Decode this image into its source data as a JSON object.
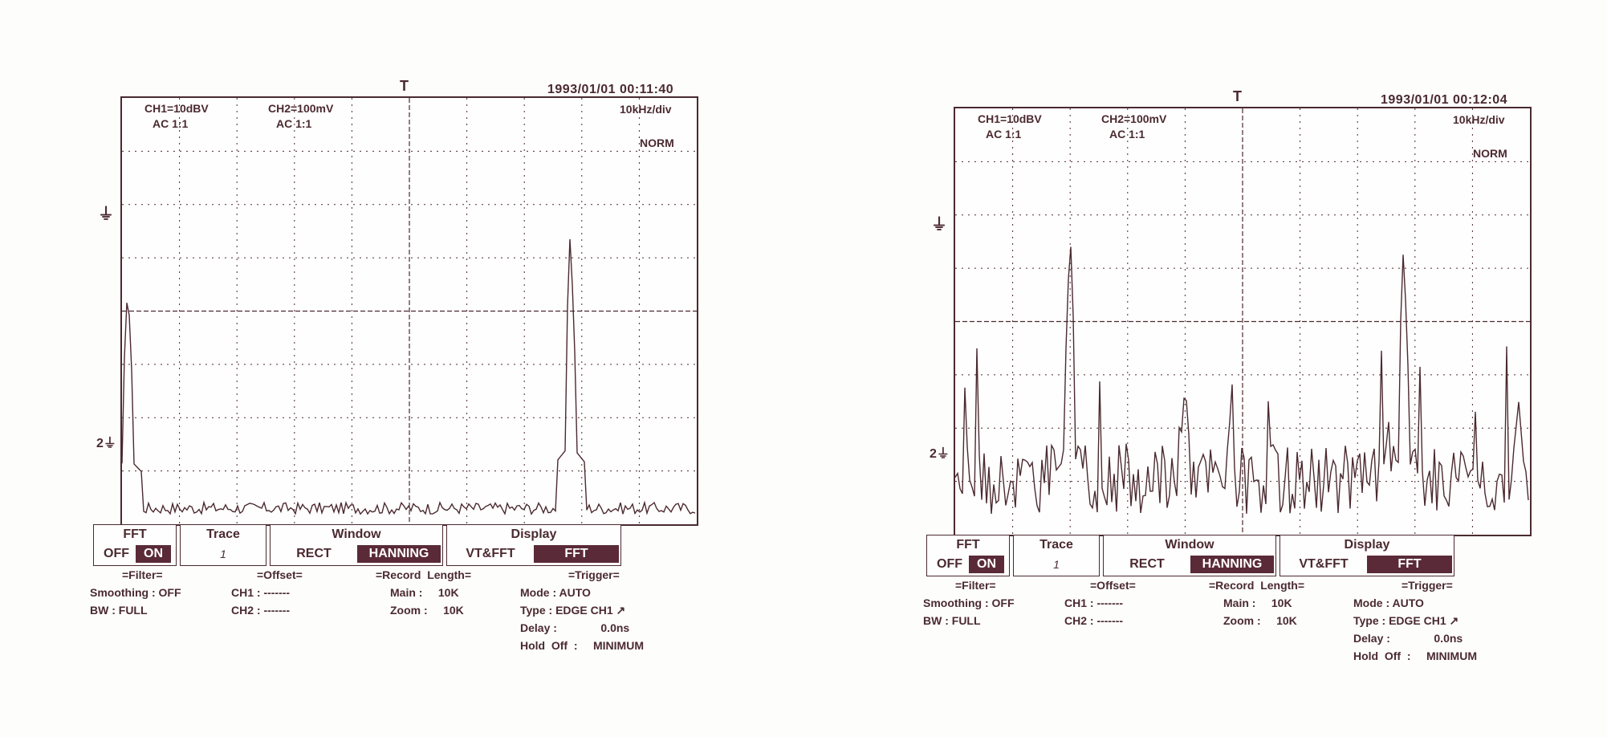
{
  "scopes": [
    {
      "datetime": "1993/01/01  00:11:40",
      "ch1": "CH1=10dBV",
      "ch1_coupling": "AC  1:1",
      "ch2": "CH2=100mV",
      "ch2_coupling": "AC  1:1",
      "scale": "10kHz/div",
      "mode_indicator": "NORM",
      "fft": {
        "label": "FFT",
        "off": "OFF",
        "on": "ON",
        "selected": "ON"
      },
      "trace": {
        "label": "Trace",
        "value": "1"
      },
      "window": {
        "label": "Window",
        "options": [
          "RECT",
          "HANNING"
        ],
        "selected": "HANNING"
      },
      "display": {
        "label": "Display",
        "options": [
          "VT&FFT",
          "FFT"
        ],
        "selected": "FFT"
      },
      "filter": {
        "header": "=Filter=",
        "smoothing": "Smoothing : OFF",
        "bw": "BW : FULL"
      },
      "offset": {
        "header": "=Offset=",
        "ch1": "CH1 : -------",
        "ch2": "CH2 : -------"
      },
      "record": {
        "header": "=Record  Length=",
        "main": "Main :     10K",
        "zoom": "Zoom :     10K"
      },
      "trigger": {
        "header": "=Trigger=",
        "mode": "Mode : AUTO",
        "type": "Type : EDGE CH1",
        "delay_label": "Delay :",
        "delay_value": "0.0ns",
        "holdoff_label": "Hold  Off  :",
        "holdoff_value": "MINIMUM"
      },
      "spectrum_peaks": [
        {
          "freq_div": 0.1,
          "level_div": 4.4
        },
        {
          "freq_div": 7.8,
          "level_div": 5.4
        }
      ],
      "noise_floor_div": 0.2
    },
    {
      "datetime": "1993/01/01  00:12:04",
      "ch1": "CH1=10dBV",
      "ch1_coupling": "AC  1:1",
      "ch2": "CH2=100mV",
      "ch2_coupling": "AC  1:1",
      "scale": "10kHz/div",
      "mode_indicator": "NORM",
      "fft": {
        "label": "FFT",
        "off": "OFF",
        "on": "ON",
        "selected": "ON"
      },
      "trace": {
        "label": "Trace",
        "value": "1"
      },
      "window": {
        "label": "Window",
        "options": [
          "RECT",
          "HANNING"
        ],
        "selected": "HANNING"
      },
      "display": {
        "label": "Display",
        "options": [
          "VT&FFT",
          "FFT"
        ],
        "selected": "FFT"
      },
      "filter": {
        "header": "=Filter=",
        "smoothing": "Smoothing : OFF",
        "bw": "BW : FULL"
      },
      "offset": {
        "header": "=Offset=",
        "ch1": "CH1 : -------",
        "ch2": "CH2 : -------"
      },
      "record": {
        "header": "=Record  Length=",
        "main": "Main :     10K",
        "zoom": "Zoom :     10K"
      },
      "trigger": {
        "header": "=Trigger=",
        "mode": "Mode : AUTO",
        "type": "Type : EDGE CH1",
        "delay_label": "Delay :",
        "delay_value": "0.0ns",
        "holdoff_label": "Hold  Off  :",
        "holdoff_value": "MINIMUM"
      },
      "spectrum_peaks": [
        {
          "freq_div": 2.0,
          "level_div": 5.6
        },
        {
          "freq_div": 4.0,
          "level_div": 2.7
        },
        {
          "freq_div": 7.8,
          "level_div": 5.3
        },
        {
          "freq_div": 9.8,
          "level_div": 2.4
        }
      ],
      "noise_floor_div": 1.2
    }
  ],
  "colors": {
    "ink": "#4a2a30",
    "selected_bg": "#5a2a38",
    "paper": "#fdfdfb"
  }
}
